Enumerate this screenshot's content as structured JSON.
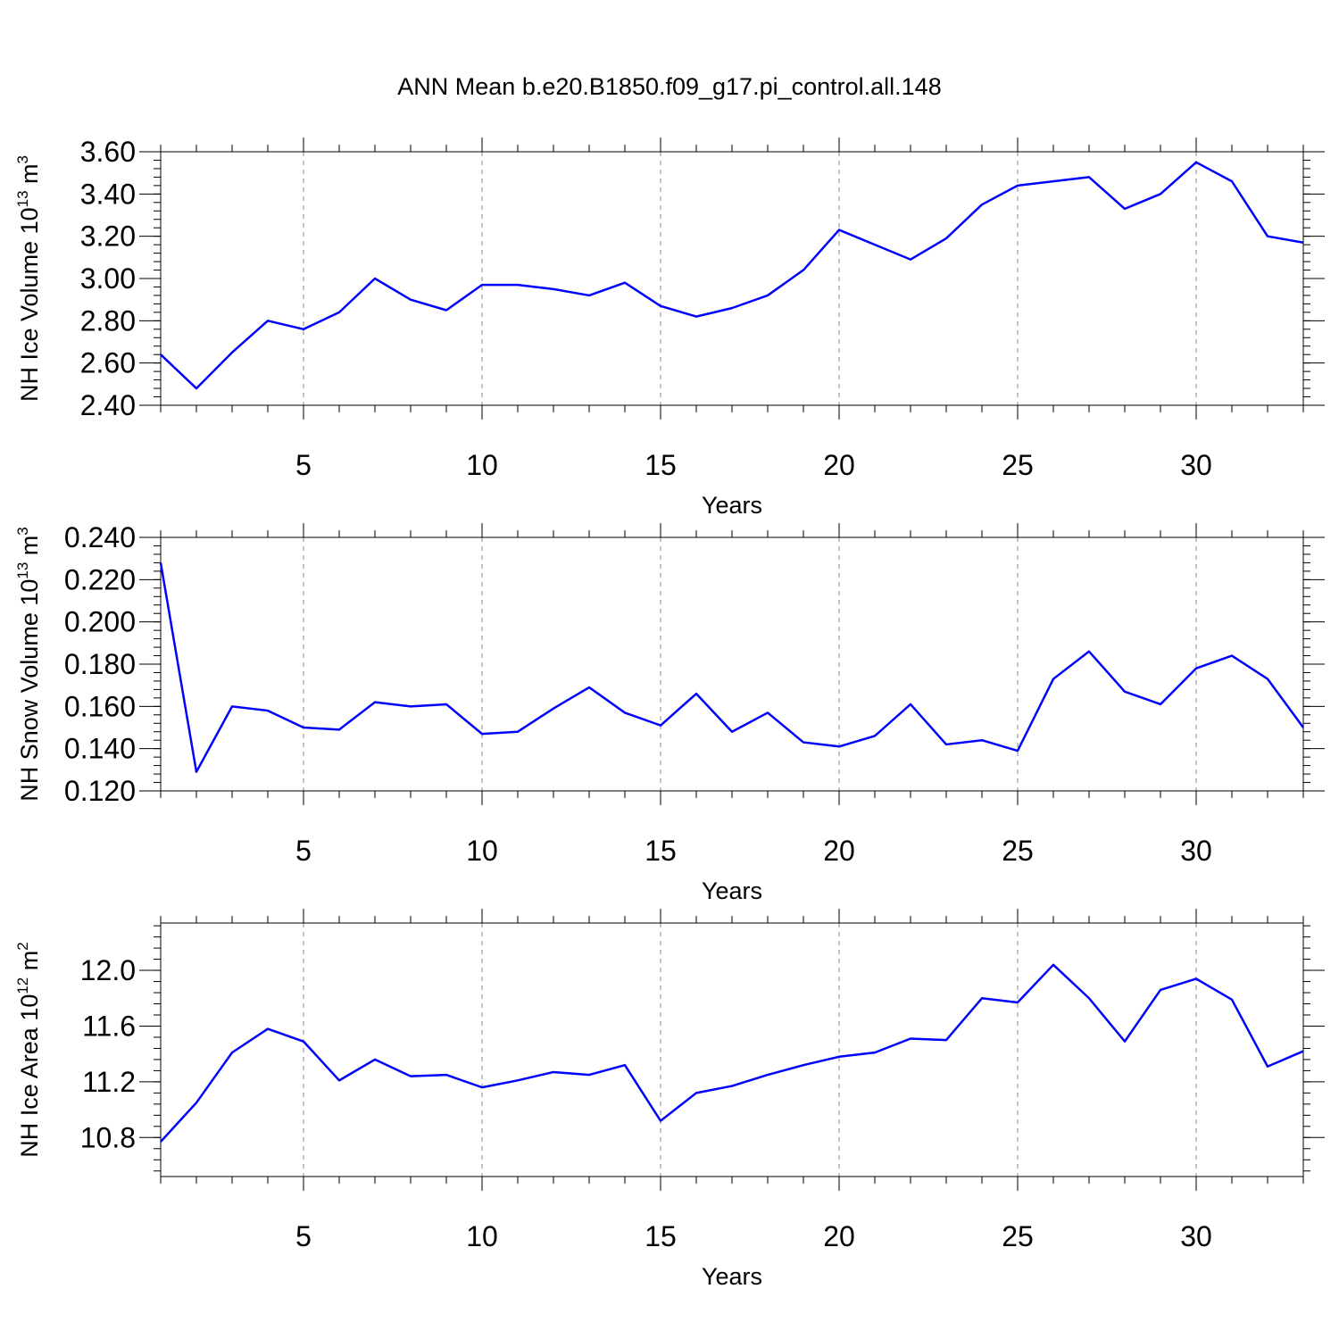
{
  "figure": {
    "title": "ANN Mean b.e20.B1850.f09_g17.pi_control.all.148",
    "line_color": "#0000ff"
  },
  "chart_data": [
    {
      "type": "line",
      "xlabel": "Years",
      "ylabel": {
        "prefix": "NH Ice Volume 10",
        "sup1": "13",
        "mid": " m",
        "sup2": "3"
      },
      "xlim": [
        1,
        33
      ],
      "ylim": [
        2.4,
        3.6
      ],
      "xticks": [
        5,
        10,
        15,
        20,
        25,
        30
      ],
      "yticks": [
        "2.40",
        "2.60",
        "2.80",
        "3.00",
        "3.20",
        "3.40",
        "3.60"
      ],
      "grid": "vertical dashed at major x ticks",
      "x": [
        1,
        2,
        3,
        4,
        5,
        6,
        7,
        8,
        9,
        10,
        11,
        12,
        13,
        14,
        15,
        16,
        17,
        18,
        19,
        20,
        21,
        22,
        23,
        24,
        25,
        26,
        27,
        28,
        29,
        30,
        31,
        32,
        33
      ],
      "values": [
        2.64,
        2.48,
        2.65,
        2.8,
        2.76,
        2.84,
        3.0,
        2.9,
        2.85,
        2.97,
        2.97,
        2.95,
        2.92,
        2.98,
        2.87,
        2.82,
        2.86,
        2.92,
        3.04,
        3.23,
        3.16,
        3.09,
        3.19,
        3.35,
        3.44,
        3.46,
        3.48,
        3.33,
        3.4,
        3.55,
        3.46,
        3.2,
        3.17
      ]
    },
    {
      "type": "line",
      "xlabel": "Years",
      "ylabel": {
        "prefix": "NH Snow Volume 10",
        "sup1": "13",
        "mid": " m",
        "sup2": "3"
      },
      "xlim": [
        1,
        33
      ],
      "ylim": [
        0.12,
        0.24
      ],
      "xticks": [
        5,
        10,
        15,
        20,
        25,
        30
      ],
      "yticks": [
        "0.120",
        "0.140",
        "0.160",
        "0.180",
        "0.200",
        "0.220",
        "0.240"
      ],
      "grid": "vertical dashed at major x ticks",
      "x": [
        1,
        2,
        3,
        4,
        5,
        6,
        7,
        8,
        9,
        10,
        11,
        12,
        13,
        14,
        15,
        16,
        17,
        18,
        19,
        20,
        21,
        22,
        23,
        24,
        25,
        26,
        27,
        28,
        29,
        30,
        31,
        32,
        33
      ],
      "values": [
        0.228,
        0.129,
        0.16,
        0.158,
        0.15,
        0.149,
        0.162,
        0.16,
        0.161,
        0.147,
        0.148,
        0.159,
        0.169,
        0.157,
        0.151,
        0.166,
        0.148,
        0.157,
        0.143,
        0.141,
        0.146,
        0.161,
        0.142,
        0.144,
        0.139,
        0.173,
        0.186,
        0.167,
        0.161,
        0.178,
        0.184,
        0.173,
        0.15
      ]
    },
    {
      "type": "line",
      "xlabel": "Years",
      "ylabel": {
        "prefix": "NH Ice Area 10",
        "sup1": "12",
        "mid": " m",
        "sup2": "2"
      },
      "xlim": [
        1,
        33
      ],
      "ylim": [
        10.52,
        12.34
      ],
      "xticks": [
        5,
        10,
        15,
        20,
        25,
        30
      ],
      "yticks": [
        "10.8",
        "11.2",
        "11.6",
        "12.0"
      ],
      "grid": "vertical dashed at major x ticks",
      "x": [
        1,
        2,
        3,
        4,
        5,
        6,
        7,
        8,
        9,
        10,
        11,
        12,
        13,
        14,
        15,
        16,
        17,
        18,
        19,
        20,
        21,
        22,
        23,
        24,
        25,
        26,
        27,
        28,
        29,
        30,
        31,
        32,
        33
      ],
      "values": [
        10.77,
        11.05,
        11.41,
        11.58,
        11.49,
        11.21,
        11.36,
        11.24,
        11.25,
        11.16,
        11.21,
        11.27,
        11.25,
        11.32,
        10.92,
        11.12,
        11.17,
        11.25,
        11.32,
        11.38,
        11.41,
        11.51,
        11.5,
        11.8,
        11.77,
        12.04,
        11.8,
        11.49,
        11.86,
        11.94,
        11.79,
        11.31,
        11.42
      ]
    }
  ]
}
